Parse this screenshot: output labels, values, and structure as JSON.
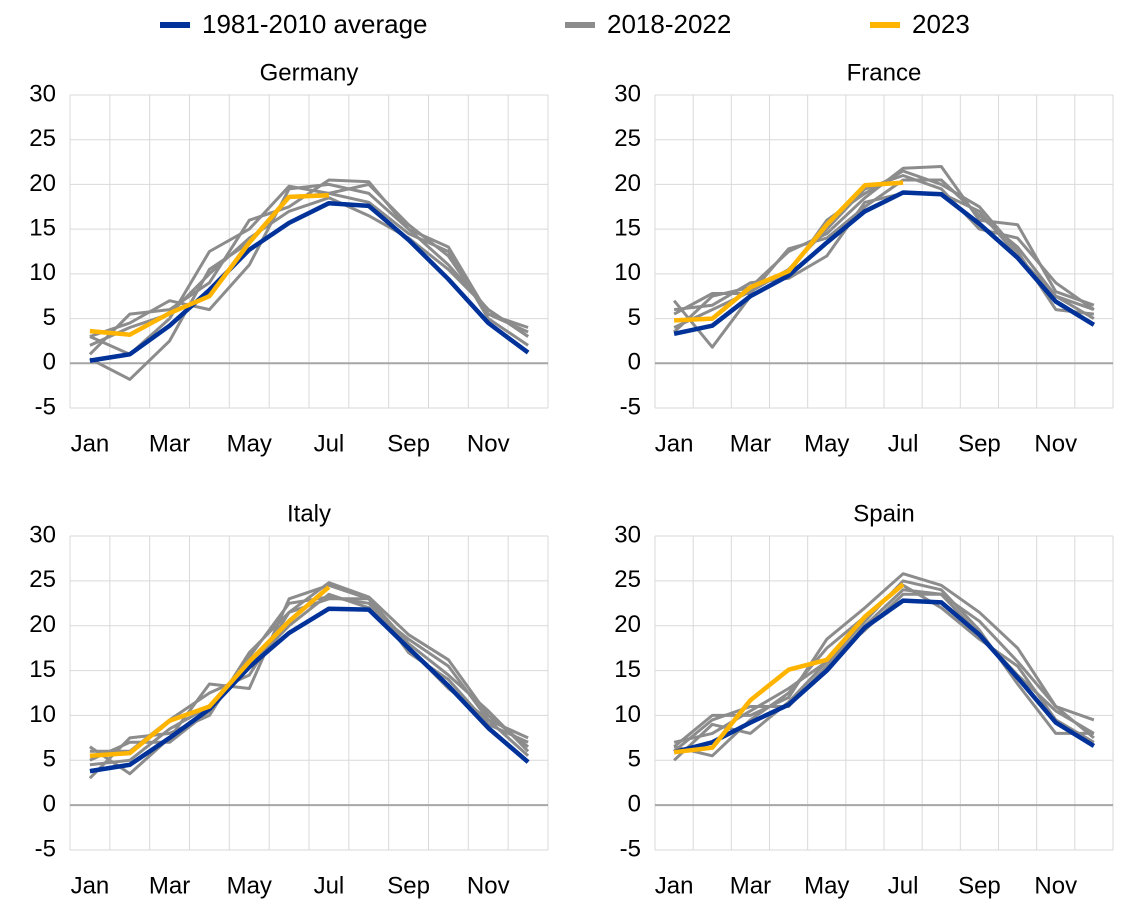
{
  "chart_data": [
    {
      "type": "line",
      "title": "Germany",
      "categories": [
        "Jan",
        null,
        "Mar",
        null,
        "May",
        null,
        "Jul",
        null,
        "Sep",
        null,
        "Nov",
        null
      ],
      "ylim": [
        -5,
        30
      ],
      "yticks": [
        -5,
        0,
        5,
        10,
        15,
        20,
        25,
        30
      ],
      "grid": true,
      "series": [
        {
          "name": "1981-2010 average",
          "color": "#003299",
          "values": [
            0.3,
            1.0,
            4.2,
            8.2,
            12.7,
            15.7,
            17.9,
            17.6,
            13.8,
            9.4,
            4.5,
            1.2
          ]
        },
        {
          "name": "2018-2022",
          "color": "#8c8c8c",
          "values": [
            3.0,
            1.0,
            5.0,
            12.5,
            15.0,
            19.8,
            19.0,
            20.0,
            15.5,
            12.0,
            5.5,
            3.5
          ]
        },
        {
          "name": "2018-2022",
          "color": "#8c8c8c",
          "values": [
            1.0,
            5.5,
            6.0,
            9.0,
            16.0,
            17.5,
            20.5,
            20.3,
            15.0,
            11.0,
            6.0,
            3.0
          ]
        },
        {
          "name": "2018-2022",
          "color": "#8c8c8c",
          "values": [
            0.5,
            -1.8,
            2.5,
            10.5,
            13.5,
            18.5,
            19.0,
            18.0,
            14.5,
            12.5,
            5.0,
            2.0
          ]
        },
        {
          "name": "2018-2022",
          "color": "#8c8c8c",
          "values": [
            3.0,
            4.5,
            7.0,
            6.0,
            11.0,
            19.5,
            20.0,
            19.0,
            15.0,
            13.0,
            5.5,
            4.0
          ]
        },
        {
          "name": "2018-2022",
          "color": "#8c8c8c",
          "values": [
            2.0,
            4.0,
            5.5,
            10.0,
            14.0,
            17.0,
            18.5,
            16.5,
            14.0,
            10.5,
            6.0,
            3.0
          ]
        },
        {
          "name": "2023",
          "color": "#ffb400",
          "values": [
            3.6,
            3.2,
            5.6,
            7.5,
            13.5,
            18.6,
            18.8,
            null,
            null,
            null,
            null,
            null
          ]
        }
      ]
    },
    {
      "type": "line",
      "title": "France",
      "categories": [
        "Jan",
        null,
        "Mar",
        null,
        "May",
        null,
        "Jul",
        null,
        "Sep",
        null,
        "Nov",
        null
      ],
      "ylim": [
        -5,
        30
      ],
      "yticks": [
        -5,
        0,
        5,
        10,
        15,
        20,
        25,
        30
      ],
      "grid": true,
      "series": [
        {
          "name": "1981-2010 average",
          "color": "#003299",
          "values": [
            3.3,
            4.2,
            7.5,
            9.8,
            13.5,
            17.0,
            19.1,
            18.9,
            15.6,
            11.8,
            6.9,
            4.3
          ]
        },
        {
          "name": "2018-2022",
          "color": "#8c8c8c",
          "values": [
            3.5,
            7.5,
            8.5,
            12.5,
            14.5,
            18.5,
            21.8,
            22.0,
            16.0,
            15.5,
            8.0,
            6.5
          ]
        },
        {
          "name": "2018-2022",
          "color": "#8c8c8c",
          "values": [
            7.0,
            1.8,
            7.5,
            10.0,
            16.0,
            19.0,
            21.5,
            20.0,
            17.5,
            12.5,
            6.0,
            5.5
          ]
        },
        {
          "name": "2018-2022",
          "color": "#8c8c8c",
          "values": [
            5.5,
            7.8,
            7.8,
            12.8,
            14.0,
            17.5,
            20.5,
            20.5,
            16.5,
            13.0,
            7.5,
            5.0
          ]
        },
        {
          "name": "2018-2022",
          "color": "#8c8c8c",
          "values": [
            6.0,
            6.5,
            9.0,
            9.5,
            12.0,
            18.0,
            19.0,
            19.0,
            17.0,
            12.0,
            7.5,
            6.0
          ]
        },
        {
          "name": "2018-2022",
          "color": "#8c8c8c",
          "values": [
            4.0,
            6.0,
            8.0,
            10.5,
            15.0,
            19.5,
            21.0,
            19.5,
            15.0,
            14.0,
            9.0,
            6.0
          ]
        },
        {
          "name": "2023",
          "color": "#ffb400",
          "values": [
            4.8,
            5.0,
            8.5,
            10.3,
            15.5,
            19.9,
            20.2,
            null,
            null,
            null,
            null,
            null
          ]
        }
      ]
    },
    {
      "type": "line",
      "title": "Italy",
      "categories": [
        "Jan",
        null,
        "Mar",
        null,
        "May",
        null,
        "Jul",
        null,
        "Sep",
        null,
        "Nov",
        null
      ],
      "ylim": [
        -5,
        30
      ],
      "yticks": [
        -5,
        0,
        5,
        10,
        15,
        20,
        25,
        30
      ],
      "grid": true,
      "series": [
        {
          "name": "1981-2010 average",
          "color": "#003299",
          "values": [
            3.8,
            4.5,
            7.5,
            10.7,
            15.4,
            19.2,
            21.9,
            21.8,
            17.5,
            13.3,
            8.6,
            4.8
          ]
        },
        {
          "name": "2018-2022",
          "color": "#8c8c8c",
          "values": [
            6.5,
            3.5,
            7.5,
            13.5,
            13.0,
            23.0,
            24.5,
            23.0,
            18.0,
            14.5,
            10.5,
            6.0
          ]
        },
        {
          "name": "2018-2022",
          "color": "#8c8c8c",
          "values": [
            3.0,
            7.5,
            8.0,
            10.0,
            17.0,
            21.5,
            24.8,
            23.2,
            19.0,
            16.2,
            10.0,
            6.5
          ]
        },
        {
          "name": "2018-2022",
          "color": "#8c8c8c",
          "values": [
            5.0,
            7.0,
            7.0,
            10.5,
            16.5,
            22.5,
            23.2,
            22.5,
            17.5,
            13.0,
            9.5,
            7.5
          ]
        },
        {
          "name": "2018-2022",
          "color": "#8c8c8c",
          "values": [
            4.5,
            5.0,
            8.5,
            11.0,
            15.5,
            20.0,
            23.5,
            22.0,
            18.5,
            15.5,
            9.5,
            5.5
          ]
        },
        {
          "name": "2018-2022",
          "color": "#8c8c8c",
          "values": [
            6.0,
            6.0,
            9.5,
            12.5,
            14.5,
            21.5,
            23.0,
            23.0,
            17.0,
            14.0,
            9.0,
            7.0
          ]
        },
        {
          "name": "2023",
          "color": "#ffb400",
          "values": [
            5.5,
            5.8,
            9.4,
            11.0,
            16.0,
            20.5,
            24.3,
            null,
            null,
            null,
            null,
            null
          ]
        }
      ]
    },
    {
      "type": "line",
      "title": "Spain",
      "categories": [
        "Jan",
        null,
        "Mar",
        null,
        "May",
        null,
        "Jul",
        null,
        "Sep",
        null,
        "Nov",
        null
      ],
      "ylim": [
        -5,
        30
      ],
      "yticks": [
        -5,
        0,
        5,
        10,
        15,
        20,
        25,
        30
      ],
      "grid": true,
      "series": [
        {
          "name": "1981-2010 average",
          "color": "#003299",
          "values": [
            5.9,
            7.0,
            9.2,
            11.2,
            15.0,
            19.8,
            22.8,
            22.6,
            19.0,
            14.2,
            9.2,
            6.6
          ]
        },
        {
          "name": "2018-2022",
          "color": "#8c8c8c",
          "values": [
            6.5,
            10.0,
            10.0,
            12.0,
            18.5,
            22.0,
            25.8,
            24.5,
            21.5,
            17.5,
            11.0,
            9.5
          ]
        },
        {
          "name": "2018-2022",
          "color": "#8c8c8c",
          "values": [
            5.0,
            9.0,
            8.0,
            11.5,
            16.0,
            20.5,
            25.0,
            24.0,
            19.5,
            13.5,
            8.0,
            8.0
          ]
        },
        {
          "name": "2018-2022",
          "color": "#8c8c8c",
          "values": [
            6.5,
            5.5,
            9.5,
            12.5,
            17.5,
            21.0,
            24.5,
            22.0,
            18.5,
            15.5,
            9.5,
            7.0
          ]
        },
        {
          "name": "2018-2022",
          "color": "#8c8c8c",
          "values": [
            6.0,
            9.5,
            11.0,
            11.0,
            15.5,
            20.0,
            24.0,
            23.5,
            20.5,
            16.0,
            11.0,
            7.5
          ]
        },
        {
          "name": "2018-2022",
          "color": "#8c8c8c",
          "values": [
            7.0,
            8.0,
            10.5,
            13.0,
            16.0,
            19.5,
            23.5,
            23.5,
            19.0,
            14.5,
            10.5,
            8.0
          ]
        },
        {
          "name": "2023",
          "color": "#ffb400",
          "values": [
            5.9,
            6.4,
            11.7,
            15.1,
            16.2,
            21.0,
            24.6,
            null,
            null,
            null,
            null,
            null
          ]
        }
      ]
    }
  ]
}
